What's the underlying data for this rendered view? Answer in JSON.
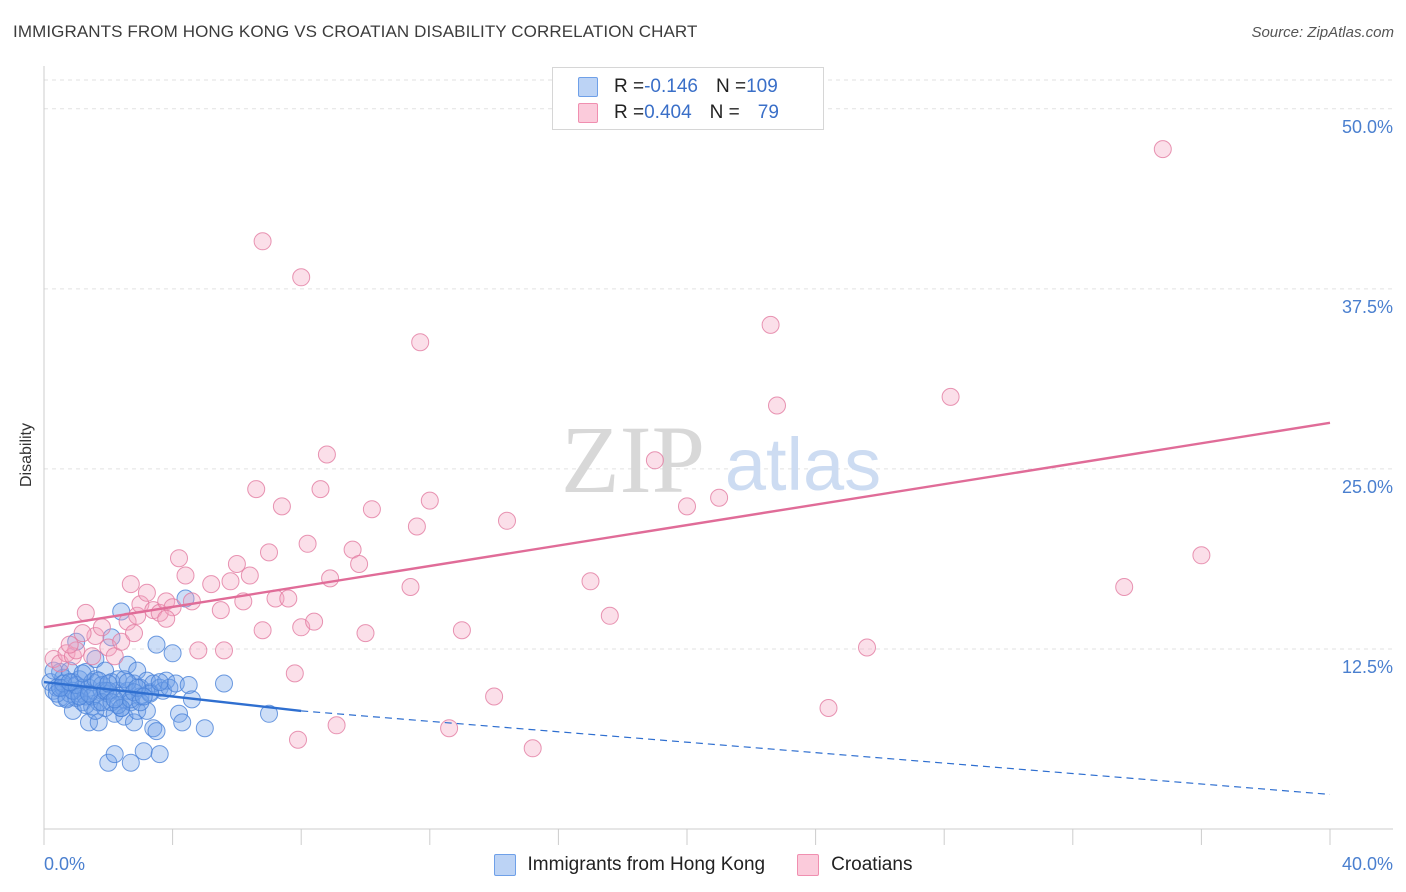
{
  "header": {
    "title": "IMMIGRANTS FROM HONG KONG VS CROATIAN DISABILITY CORRELATION CHART",
    "source": "Source: ZipAtlas.com"
  },
  "watermark": {
    "zip": "ZIP",
    "atlas": "atlas"
  },
  "legend_top": [
    {
      "r_label": "R = ",
      "r_value": "-0.146",
      "n_label": "N = ",
      "n_value": "109",
      "color": "#6fa0e8"
    },
    {
      "r_label": "R = ",
      "r_value": "0.404",
      "n_label": "N = ",
      "n_value": "79",
      "color": "#f08fb0"
    }
  ],
  "legend_bottom": [
    {
      "label": "Immigrants from Hong Kong",
      "color": "#6fa0e8"
    },
    {
      "label": "Croatians",
      "color": "#f08fb0"
    }
  ],
  "chart_data": {
    "type": "scatter",
    "title": "IMMIGRANTS FROM HONG KONG VS CROATIAN DISABILITY CORRELATION CHART",
    "xlabel": "",
    "ylabel": "Disability",
    "xlim": [
      0,
      40
    ],
    "ylim": [
      0,
      52
    ],
    "x_tick_labels": [
      "0.0%",
      "40.0%"
    ],
    "y_ticks": [
      12.5,
      25.0,
      37.5,
      50.0
    ],
    "y_tick_labels": [
      "12.5%",
      "25.0%",
      "37.5%",
      "50.0%"
    ],
    "grid": "horizontal dashed",
    "legend": "top-center",
    "series": [
      {
        "name": "Immigrants from Hong Kong",
        "color": "#6fa0e8",
        "stroke": "#4a82d8",
        "points": [
          [
            0.2,
            10.2
          ],
          [
            0.3,
            9.6
          ],
          [
            0.4,
            9.8
          ],
          [
            0.5,
            10.9
          ],
          [
            0.5,
            9.1
          ],
          [
            0.6,
            10.5
          ],
          [
            0.6,
            9.8
          ],
          [
            0.7,
            9.1
          ],
          [
            0.8,
            9.4
          ],
          [
            0.8,
            11.0
          ],
          [
            0.9,
            10.2
          ],
          [
            0.9,
            8.2
          ],
          [
            1.0,
            9.1
          ],
          [
            1.0,
            13.0
          ],
          [
            1.1,
            9.4
          ],
          [
            1.1,
            10.4
          ],
          [
            1.2,
            9.8
          ],
          [
            1.2,
            8.8
          ],
          [
            1.3,
            9.2
          ],
          [
            1.3,
            10.9
          ],
          [
            1.4,
            7.4
          ],
          [
            1.4,
            9.8
          ],
          [
            1.5,
            8.5
          ],
          [
            1.5,
            10.2
          ],
          [
            1.6,
            11.8
          ],
          [
            1.6,
            10.4
          ],
          [
            1.7,
            8.8
          ],
          [
            1.7,
            7.4
          ],
          [
            1.8,
            9.6
          ],
          [
            1.8,
            10.0
          ],
          [
            1.9,
            8.4
          ],
          [
            1.9,
            11.0
          ],
          [
            2.0,
            4.6
          ],
          [
            2.0,
            9.4
          ],
          [
            2.1,
            13.3
          ],
          [
            2.1,
            10.2
          ],
          [
            2.2,
            8.0
          ],
          [
            2.2,
            5.2
          ],
          [
            2.3,
            9.6
          ],
          [
            2.3,
            10.4
          ],
          [
            2.4,
            8.4
          ],
          [
            2.4,
            15.1
          ],
          [
            2.5,
            7.8
          ],
          [
            2.5,
            9.0
          ],
          [
            2.6,
            9.6
          ],
          [
            2.6,
            11.4
          ],
          [
            2.7,
            4.6
          ],
          [
            2.7,
            8.8
          ],
          [
            2.8,
            10.1
          ],
          [
            2.8,
            7.4
          ],
          [
            2.9,
            8.2
          ],
          [
            2.9,
            11.0
          ],
          [
            3.0,
            9.8
          ],
          [
            3.0,
            9.2
          ],
          [
            3.1,
            5.4
          ],
          [
            3.2,
            10.3
          ],
          [
            3.2,
            8.2
          ],
          [
            3.3,
            9.5
          ],
          [
            3.4,
            7.0
          ],
          [
            3.4,
            10.1
          ],
          [
            3.5,
            12.8
          ],
          [
            3.5,
            6.8
          ],
          [
            3.6,
            9.8
          ],
          [
            3.6,
            5.2
          ],
          [
            3.7,
            9.6
          ],
          [
            3.8,
            10.3
          ],
          [
            3.9,
            9.8
          ],
          [
            4.0,
            12.2
          ],
          [
            4.1,
            10.1
          ],
          [
            4.2,
            8.0
          ],
          [
            4.3,
            7.4
          ],
          [
            4.4,
            16.0
          ],
          [
            4.5,
            10.0
          ],
          [
            4.6,
            9.0
          ],
          [
            5.0,
            7.0
          ],
          [
            5.6,
            10.1
          ],
          [
            7.0,
            8.0
          ],
          [
            0.3,
            11.0
          ],
          [
            0.4,
            9.4
          ],
          [
            0.6,
            10.1
          ],
          [
            0.7,
            9.0
          ],
          [
            0.9,
            9.6
          ],
          [
            1.0,
            10.0
          ],
          [
            1.2,
            10.8
          ],
          [
            1.3,
            8.6
          ],
          [
            1.5,
            9.2
          ],
          [
            1.6,
            8.2
          ],
          [
            1.8,
            8.8
          ],
          [
            1.9,
            9.6
          ],
          [
            2.0,
            9.6
          ],
          [
            2.1,
            8.8
          ],
          [
            2.3,
            8.6
          ],
          [
            2.4,
            8.4
          ],
          [
            2.5,
            10.4
          ],
          [
            2.6,
            10.2
          ],
          [
            2.7,
            9.0
          ],
          [
            2.8,
            9.5
          ],
          [
            3.0,
            8.8
          ],
          [
            3.3,
            9.4
          ],
          [
            3.6,
            10.2
          ],
          [
            1.1,
            9.2
          ],
          [
            1.7,
            10.3
          ],
          [
            2.2,
            9.0
          ],
          [
            2.9,
            9.8
          ],
          [
            3.1,
            9.2
          ],
          [
            0.5,
            9.8
          ],
          [
            0.8,
            10.2
          ],
          [
            1.4,
            9.4
          ],
          [
            2.0,
            10.1
          ]
        ],
        "trend": {
          "x": [
            0,
            8,
            40
          ],
          "y": [
            10.2,
            8.2,
            2.4
          ],
          "solid_until": 8
        }
      },
      {
        "name": "Croatians",
        "color": "#f4a3bf",
        "stroke": "#e27aa0",
        "points": [
          [
            0.3,
            11.8
          ],
          [
            0.5,
            11.5
          ],
          [
            0.7,
            12.2
          ],
          [
            0.9,
            12.0
          ],
          [
            1.0,
            12.4
          ],
          [
            1.3,
            15.0
          ],
          [
            1.5,
            12.0
          ],
          [
            1.6,
            13.4
          ],
          [
            1.8,
            14.0
          ],
          [
            2.0,
            12.6
          ],
          [
            2.2,
            12.0
          ],
          [
            2.4,
            13.0
          ],
          [
            2.6,
            14.4
          ],
          [
            2.7,
            17.0
          ],
          [
            2.8,
            13.6
          ],
          [
            2.9,
            14.8
          ],
          [
            3.0,
            15.6
          ],
          [
            3.2,
            16.4
          ],
          [
            3.4,
            15.2
          ],
          [
            3.6,
            15.0
          ],
          [
            3.8,
            15.8
          ],
          [
            4.0,
            15.4
          ],
          [
            4.2,
            18.8
          ],
          [
            4.4,
            17.6
          ],
          [
            4.6,
            15.8
          ],
          [
            4.8,
            12.4
          ],
          [
            5.2,
            17.0
          ],
          [
            5.5,
            15.2
          ],
          [
            5.6,
            12.4
          ],
          [
            5.8,
            17.2
          ],
          [
            6.0,
            18.4
          ],
          [
            6.2,
            15.8
          ],
          [
            6.4,
            17.6
          ],
          [
            6.6,
            23.6
          ],
          [
            6.8,
            13.8
          ],
          [
            7.0,
            19.2
          ],
          [
            7.2,
            16.0
          ],
          [
            7.4,
            22.4
          ],
          [
            7.6,
            16.0
          ],
          [
            7.8,
            10.8
          ],
          [
            7.9,
            6.2
          ],
          [
            8.0,
            14.0
          ],
          [
            8.2,
            19.8
          ],
          [
            8.4,
            14.4
          ],
          [
            8.6,
            23.6
          ],
          [
            8.8,
            26.0
          ],
          [
            8.9,
            17.4
          ],
          [
            9.1,
            7.2
          ],
          [
            9.6,
            19.4
          ],
          [
            9.8,
            18.4
          ],
          [
            10.0,
            13.6
          ],
          [
            10.2,
            22.2
          ],
          [
            11.4,
            16.8
          ],
          [
            11.6,
            21.0
          ],
          [
            12.0,
            22.8
          ],
          [
            12.6,
            7.0
          ],
          [
            13.0,
            13.8
          ],
          [
            14.0,
            9.2
          ],
          [
            14.4,
            21.4
          ],
          [
            15.2,
            5.6
          ],
          [
            17.0,
            17.2
          ],
          [
            17.6,
            14.8
          ],
          [
            19.0,
            25.6
          ],
          [
            20.0,
            22.4
          ],
          [
            21.0,
            23.0
          ],
          [
            22.8,
            29.4
          ],
          [
            24.4,
            8.4
          ],
          [
            25.6,
            12.6
          ],
          [
            28.2,
            30.0
          ],
          [
            33.6,
            16.8
          ],
          [
            34.8,
            47.2
          ],
          [
            36.0,
            19.0
          ],
          [
            6.8,
            40.8
          ],
          [
            8.0,
            38.3
          ],
          [
            11.7,
            33.8
          ],
          [
            22.6,
            35.0
          ],
          [
            0.8,
            12.8
          ],
          [
            1.2,
            13.6
          ],
          [
            3.8,
            14.6
          ]
        ],
        "trend": {
          "x": [
            0,
            40
          ],
          "y": [
            14.0,
            28.2
          ],
          "solid_until": 40
        }
      }
    ]
  }
}
